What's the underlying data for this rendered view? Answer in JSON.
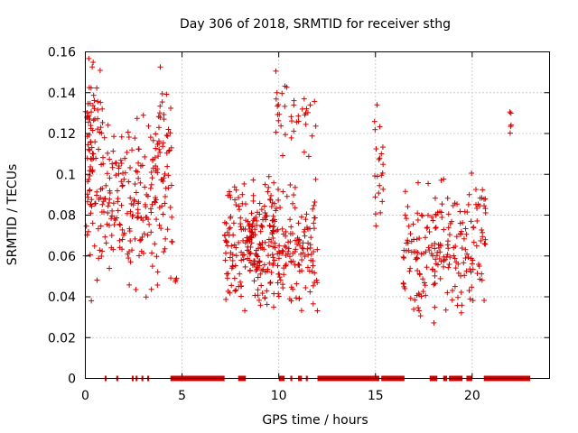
{
  "chart_data": {
    "type": "scatter",
    "title": "Day 306 of 2018, SRMTID for receiver sthg",
    "xlabel": "GPS time / hours",
    "ylabel": "SRMTID / TECUs",
    "xlim": [
      0,
      24
    ],
    "ylim": [
      0,
      0.16
    ],
    "x_ticks": [
      0,
      5,
      10,
      15,
      20
    ],
    "x_tick_labels": [
      "0",
      "5",
      "10",
      "15",
      "20"
    ],
    "y_ticks": [
      0,
      0.02,
      0.04,
      0.06,
      0.08,
      0.1,
      0.12,
      0.14,
      0.16
    ],
    "y_tick_labels": [
      "0",
      "0.02",
      "0.04",
      "0.06",
      "0.08",
      "0.1",
      "0.12",
      "0.14",
      "0.16"
    ],
    "grid": true,
    "marker": "+",
    "series_color": "#d40000",
    "series": [
      {
        "name": "SRMTID",
        "clusters": [
          {
            "x_range": [
              0.0,
              4.5
            ],
            "y_range": [
              0.035,
              0.135
            ],
            "count": 260,
            "seed": 11
          },
          {
            "x_range": [
              0.0,
              0.9
            ],
            "y_range": [
              0.1,
              0.158
            ],
            "count": 40,
            "seed": 12
          },
          {
            "x_range": [
              3.6,
              4.4
            ],
            "y_range": [
              0.09,
              0.155
            ],
            "count": 22,
            "seed": 13
          },
          {
            "x_range": [
              4.6,
              4.9
            ],
            "y_range": [
              0.043,
              0.054
            ],
            "count": 3,
            "seed": 14
          },
          {
            "x_range": [
              7.2,
              9.6
            ],
            "y_range": [
              0.03,
              0.1
            ],
            "count": 170,
            "seed": 21
          },
          {
            "x_range": [
              8.5,
              9.8
            ],
            "y_range": [
              0.05,
              0.1
            ],
            "count": 40,
            "seed": 22
          },
          {
            "x_range": [
              9.6,
              12.0
            ],
            "y_range": [
              0.03,
              0.1
            ],
            "count": 150,
            "seed": 23
          },
          {
            "x_range": [
              9.8,
              12.0
            ],
            "y_range": [
              0.1,
              0.155
            ],
            "count": 38,
            "seed": 24
          },
          {
            "x_range": [
              14.9,
              15.4
            ],
            "y_range": [
              0.07,
              0.14
            ],
            "count": 22,
            "seed": 31
          },
          {
            "x_range": [
              16.4,
              19.6
            ],
            "y_range": [
              0.025,
              0.1
            ],
            "count": 160,
            "seed": 41
          },
          {
            "x_range": [
              19.6,
              20.7
            ],
            "y_range": [
              0.027,
              0.107
            ],
            "count": 55,
            "seed": 42
          },
          {
            "x_range": [
              21.9,
              22.1
            ],
            "y_range": [
              0.11,
              0.135
            ],
            "count": 5,
            "seed": 51
          }
        ]
      }
    ],
    "zero_bands": [
      [
        1.0,
        1.1
      ],
      [
        1.6,
        1.7
      ],
      [
        2.4,
        2.5
      ],
      [
        2.6,
        2.7
      ],
      [
        2.9,
        3.0
      ],
      [
        3.2,
        3.3
      ],
      [
        4.4,
        7.2
      ],
      [
        7.9,
        8.3
      ],
      [
        10.0,
        10.3
      ],
      [
        10.6,
        10.7
      ],
      [
        11.0,
        11.2
      ],
      [
        11.4,
        11.5
      ],
      [
        12.0,
        15.2
      ],
      [
        15.3,
        16.5
      ],
      [
        17.8,
        18.2
      ],
      [
        18.5,
        18.7
      ],
      [
        18.8,
        19.5
      ],
      [
        19.7,
        20.0
      ],
      [
        20.6,
        23.0
      ]
    ]
  }
}
